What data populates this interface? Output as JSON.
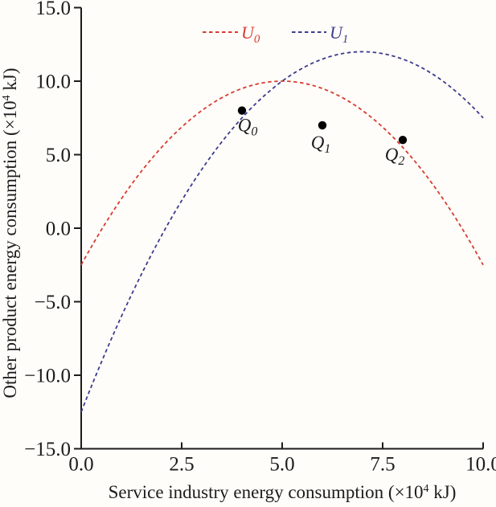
{
  "chart_data": {
    "type": "line",
    "title": "",
    "xlabel": {
      "prefix": "Service industry energy consumption (×10",
      "sup": "4",
      "suffix": " kJ)"
    },
    "ylabel": {
      "prefix": "Other product energy consumption (×10",
      "sup": "4",
      "suffix": " kJ)"
    },
    "xlim": [
      0,
      10
    ],
    "ylim": [
      -15,
      15
    ],
    "grid": false,
    "legend_position": "top-center",
    "xticks": [
      {
        "v": 0,
        "label": "0.0"
      },
      {
        "v": 2.5,
        "label": "2.5"
      },
      {
        "v": 5,
        "label": "5.0"
      },
      {
        "v": 7.5,
        "label": "7.5"
      },
      {
        "v": 10,
        "label": "10.0"
      }
    ],
    "yticks": [
      {
        "v": 15,
        "label": "15.0"
      },
      {
        "v": 10,
        "label": "10.0"
      },
      {
        "v": 5,
        "label": "5.0"
      },
      {
        "v": 0,
        "label": "0.0"
      },
      {
        "v": -5,
        "label": "−5.0"
      },
      {
        "v": -10,
        "label": "−10.0"
      },
      {
        "v": -15,
        "label": "−15.0"
      }
    ],
    "series": [
      {
        "name": "U0",
        "label_base": "U",
        "label_sub": "0",
        "color": "#d63c32",
        "line_style": "dashed",
        "shape": "parabola",
        "vertex": [
          5,
          10
        ],
        "a": -0.5,
        "x_domain": [
          0,
          10
        ],
        "x": [
          0,
          1,
          2,
          3,
          4,
          5,
          6,
          7,
          8,
          9,
          10
        ],
        "y": [
          -2.5,
          2.0,
          5.5,
          8.0,
          9.5,
          10.0,
          9.5,
          8.0,
          5.5,
          2.0,
          -2.5
        ]
      },
      {
        "name": "U1",
        "label_base": "U",
        "label_sub": "1",
        "color": "#3c3c8e",
        "line_style": "dashed",
        "shape": "parabola",
        "vertex": [
          7,
          12
        ],
        "a": -0.5,
        "x_domain": [
          0,
          10
        ],
        "x": [
          0,
          1,
          2,
          3,
          4,
          5,
          6,
          7,
          8,
          9,
          10
        ],
        "y": [
          -12.5,
          -6.0,
          -0.5,
          4.0,
          7.5,
          10.0,
          11.5,
          12.0,
          11.5,
          10.0,
          7.5
        ]
      }
    ],
    "points": [
      {
        "name": "Q0",
        "label_base": "Q",
        "label_sub": "0",
        "x": 4,
        "y": 8
      },
      {
        "name": "Q1",
        "label_base": "Q",
        "label_sub": "1",
        "x": 6,
        "y": 7
      },
      {
        "name": "Q2",
        "label_base": "Q",
        "label_sub": "2",
        "x": 8,
        "y": 6
      }
    ],
    "colors": {
      "axis": "#1c1c1c",
      "point": "#000000",
      "background": "#fffdf9"
    }
  }
}
